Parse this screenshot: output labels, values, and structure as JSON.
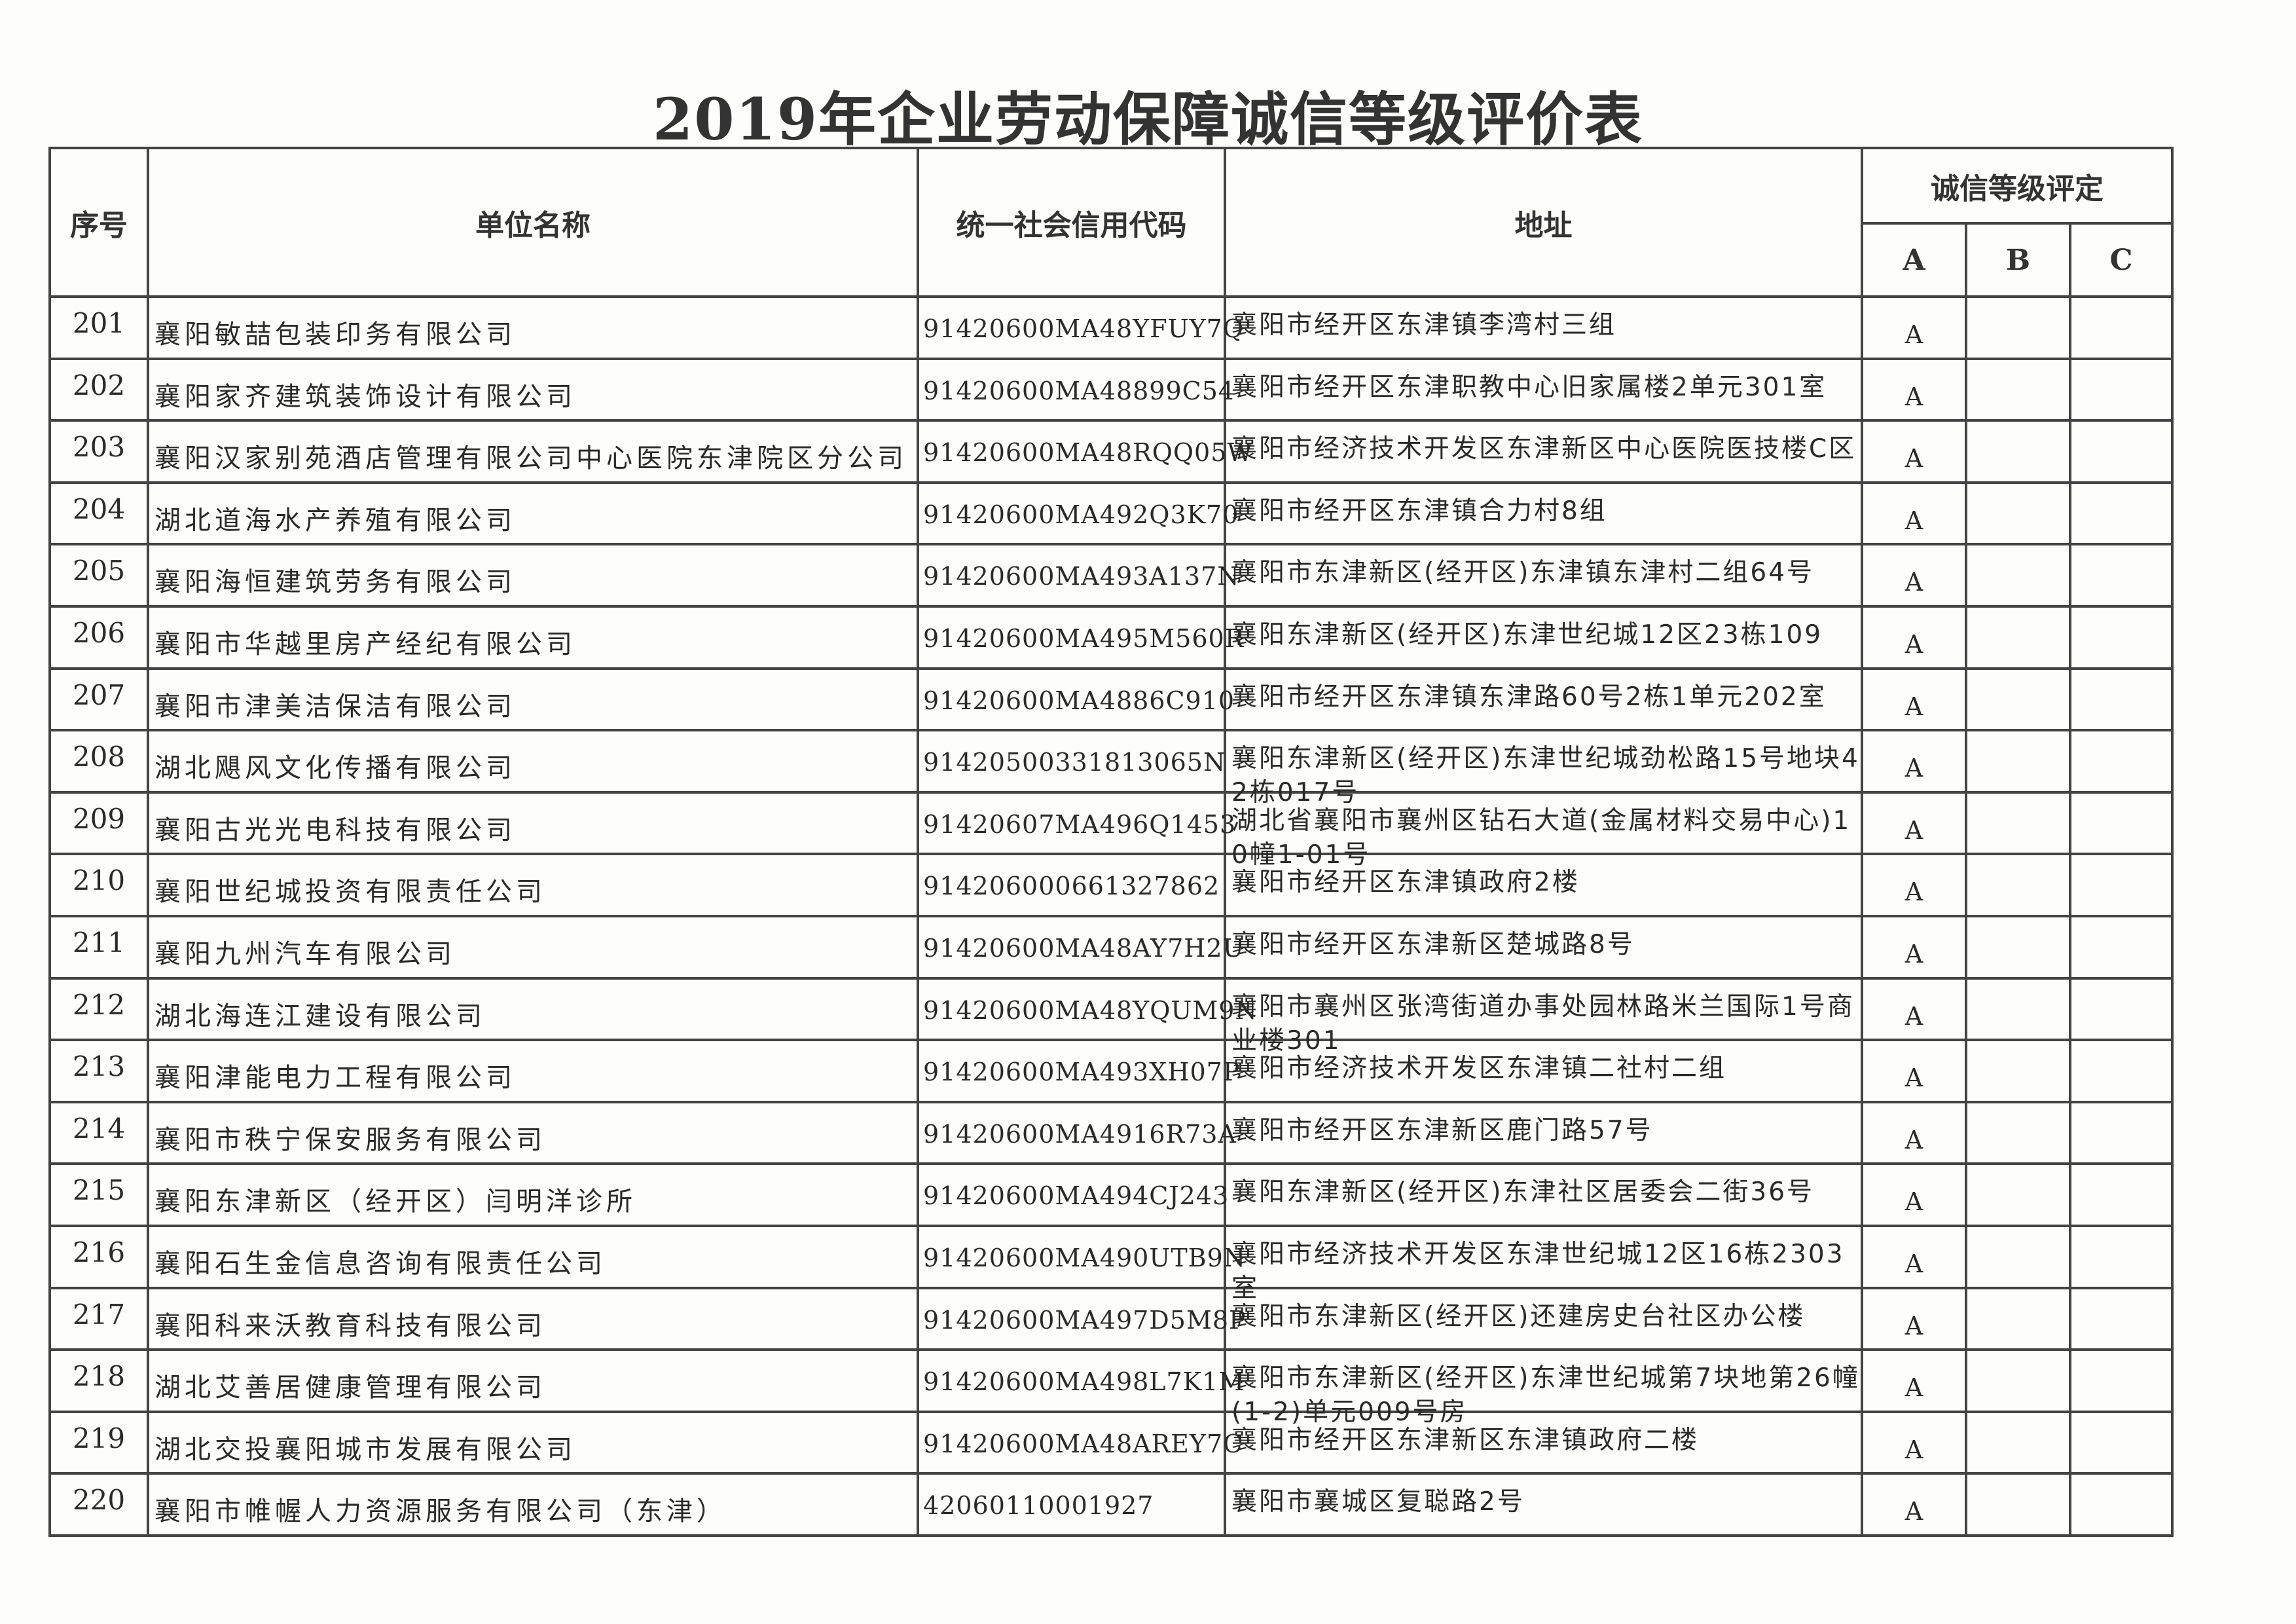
{
  "title": "2019年企业劳动保障诚信等级评价表",
  "headers": {
    "seq": "序号",
    "name": "单位名称",
    "code": "统一社会信用代码",
    "address": "地址",
    "rating": "诚信等级评定",
    "a": "A",
    "b": "B",
    "c": "C"
  },
  "rows": [
    {
      "seq": "201",
      "name": "襄阳敏喆包装印务有限公司",
      "code": "91420600MA48YFUY7Q",
      "address": "襄阳市经开区东津镇李湾村三组",
      "a": "A",
      "b": "",
      "c": ""
    },
    {
      "seq": "202",
      "name": "襄阳家齐建筑装饰设计有限公司",
      "code": "91420600MA48899C54",
      "address": "襄阳市经开区东津职教中心旧家属楼2单元301室",
      "a": "A",
      "b": "",
      "c": ""
    },
    {
      "seq": "203",
      "name": "襄阳汉家别苑酒店管理有限公司中心医院东津院区分公司",
      "code": "91420600MA48RQQ05W",
      "address": "襄阳市经济技术开发区东津新区中心医院医技楼C区",
      "a": "A",
      "b": "",
      "c": ""
    },
    {
      "seq": "204",
      "name": "湖北道海水产养殖有限公司",
      "code": "91420600MA492Q3K70",
      "address": "襄阳市经开区东津镇合力村8组",
      "a": "A",
      "b": "",
      "c": ""
    },
    {
      "seq": "205",
      "name": "襄阳海恒建筑劳务有限公司",
      "code": "91420600MA493A137N",
      "address": "襄阳市东津新区(经开区)东津镇东津村二组64号",
      "a": "A",
      "b": "",
      "c": ""
    },
    {
      "seq": "206",
      "name": "襄阳市华越里房产经纪有限公司",
      "code": "91420600MA495M560R",
      "address": "襄阳东津新区(经开区)东津世纪城12区23栋109",
      "a": "A",
      "b": "",
      "c": ""
    },
    {
      "seq": "207",
      "name": "襄阳市津美洁保洁有限公司",
      "code": "91420600MA4886C910",
      "address": "襄阳市经开区东津镇东津路60号2栋1单元202室",
      "a": "A",
      "b": "",
      "c": ""
    },
    {
      "seq": "208",
      "name": "湖北飓风文化传播有限公司",
      "code": "91420500331813065N",
      "address": "襄阳东津新区(经开区)东津世纪城劲松路15号地块42栋017号",
      "a": "A",
      "b": "",
      "c": ""
    },
    {
      "seq": "209",
      "name": "襄阳古光光电科技有限公司",
      "code": "91420607MA496Q1453",
      "address": "湖北省襄阳市襄州区钻石大道(金属材料交易中心)10幢1-01号",
      "a": "A",
      "b": "",
      "c": ""
    },
    {
      "seq": "210",
      "name": "襄阳世纪城投资有限责任公司",
      "code": "914206000661327862",
      "address": "襄阳市经开区东津镇政府2楼",
      "a": "A",
      "b": "",
      "c": ""
    },
    {
      "seq": "211",
      "name": "襄阳九州汽车有限公司",
      "code": "91420600MA48AY7H2U",
      "address": "襄阳市经开区东津新区楚城路8号",
      "a": "A",
      "b": "",
      "c": ""
    },
    {
      "seq": "212",
      "name": "湖北海连江建设有限公司",
      "code": "91420600MA48YQUM9N",
      "address": "襄阳市襄州区张湾街道办事处园林路米兰国际1号商业楼301",
      "a": "A",
      "b": "",
      "c": ""
    },
    {
      "seq": "213",
      "name": "襄阳津能电力工程有限公司",
      "code": "91420600MA493XH07P",
      "address": "襄阳市经济技术开发区东津镇二社村二组",
      "a": "A",
      "b": "",
      "c": ""
    },
    {
      "seq": "214",
      "name": "襄阳市秩宁保安服务有限公司",
      "code": "91420600MA4916R73A",
      "address": "襄阳市经开区东津新区鹿门路57号",
      "a": "A",
      "b": "",
      "c": ""
    },
    {
      "seq": "215",
      "name": "襄阳东津新区（经开区）闫明洋诊所",
      "code": "91420600MA494CJ243",
      "address": "襄阳东津新区(经开区)东津社区居委会二街36号",
      "a": "A",
      "b": "",
      "c": ""
    },
    {
      "seq": "216",
      "name": "襄阳石生金信息咨询有限责任公司",
      "code": "91420600MA490UTB9N",
      "address": "襄阳市经济技术开发区东津世纪城12区16栋2303室",
      "a": "A",
      "b": "",
      "c": ""
    },
    {
      "seq": "217",
      "name": "襄阳科来沃教育科技有限公司",
      "code": "91420600MA497D5M8P",
      "address": "襄阳市东津新区(经开区)还建房史台社区办公楼",
      "a": "A",
      "b": "",
      "c": ""
    },
    {
      "seq": "218",
      "name": "湖北艾善居健康管理有限公司",
      "code": "91420600MA498L7K1M",
      "address": "襄阳市东津新区(经开区)东津世纪城第7块地第26幢(1-2)单元009号房",
      "a": "A",
      "b": "",
      "c": ""
    },
    {
      "seq": "219",
      "name": "湖北交投襄阳城市发展有限公司",
      "code": "91420600MA48AREY7C",
      "address": "襄阳市经开区东津新区东津镇政府二楼",
      "a": "A",
      "b": "",
      "c": ""
    },
    {
      "seq": "220",
      "name": "襄阳市帷幄人力资源服务有限公司（东津）",
      "code": "42060110001927",
      "address": "襄阳市襄城区复聪路2号",
      "a": "A",
      "b": "",
      "c": ""
    }
  ]
}
